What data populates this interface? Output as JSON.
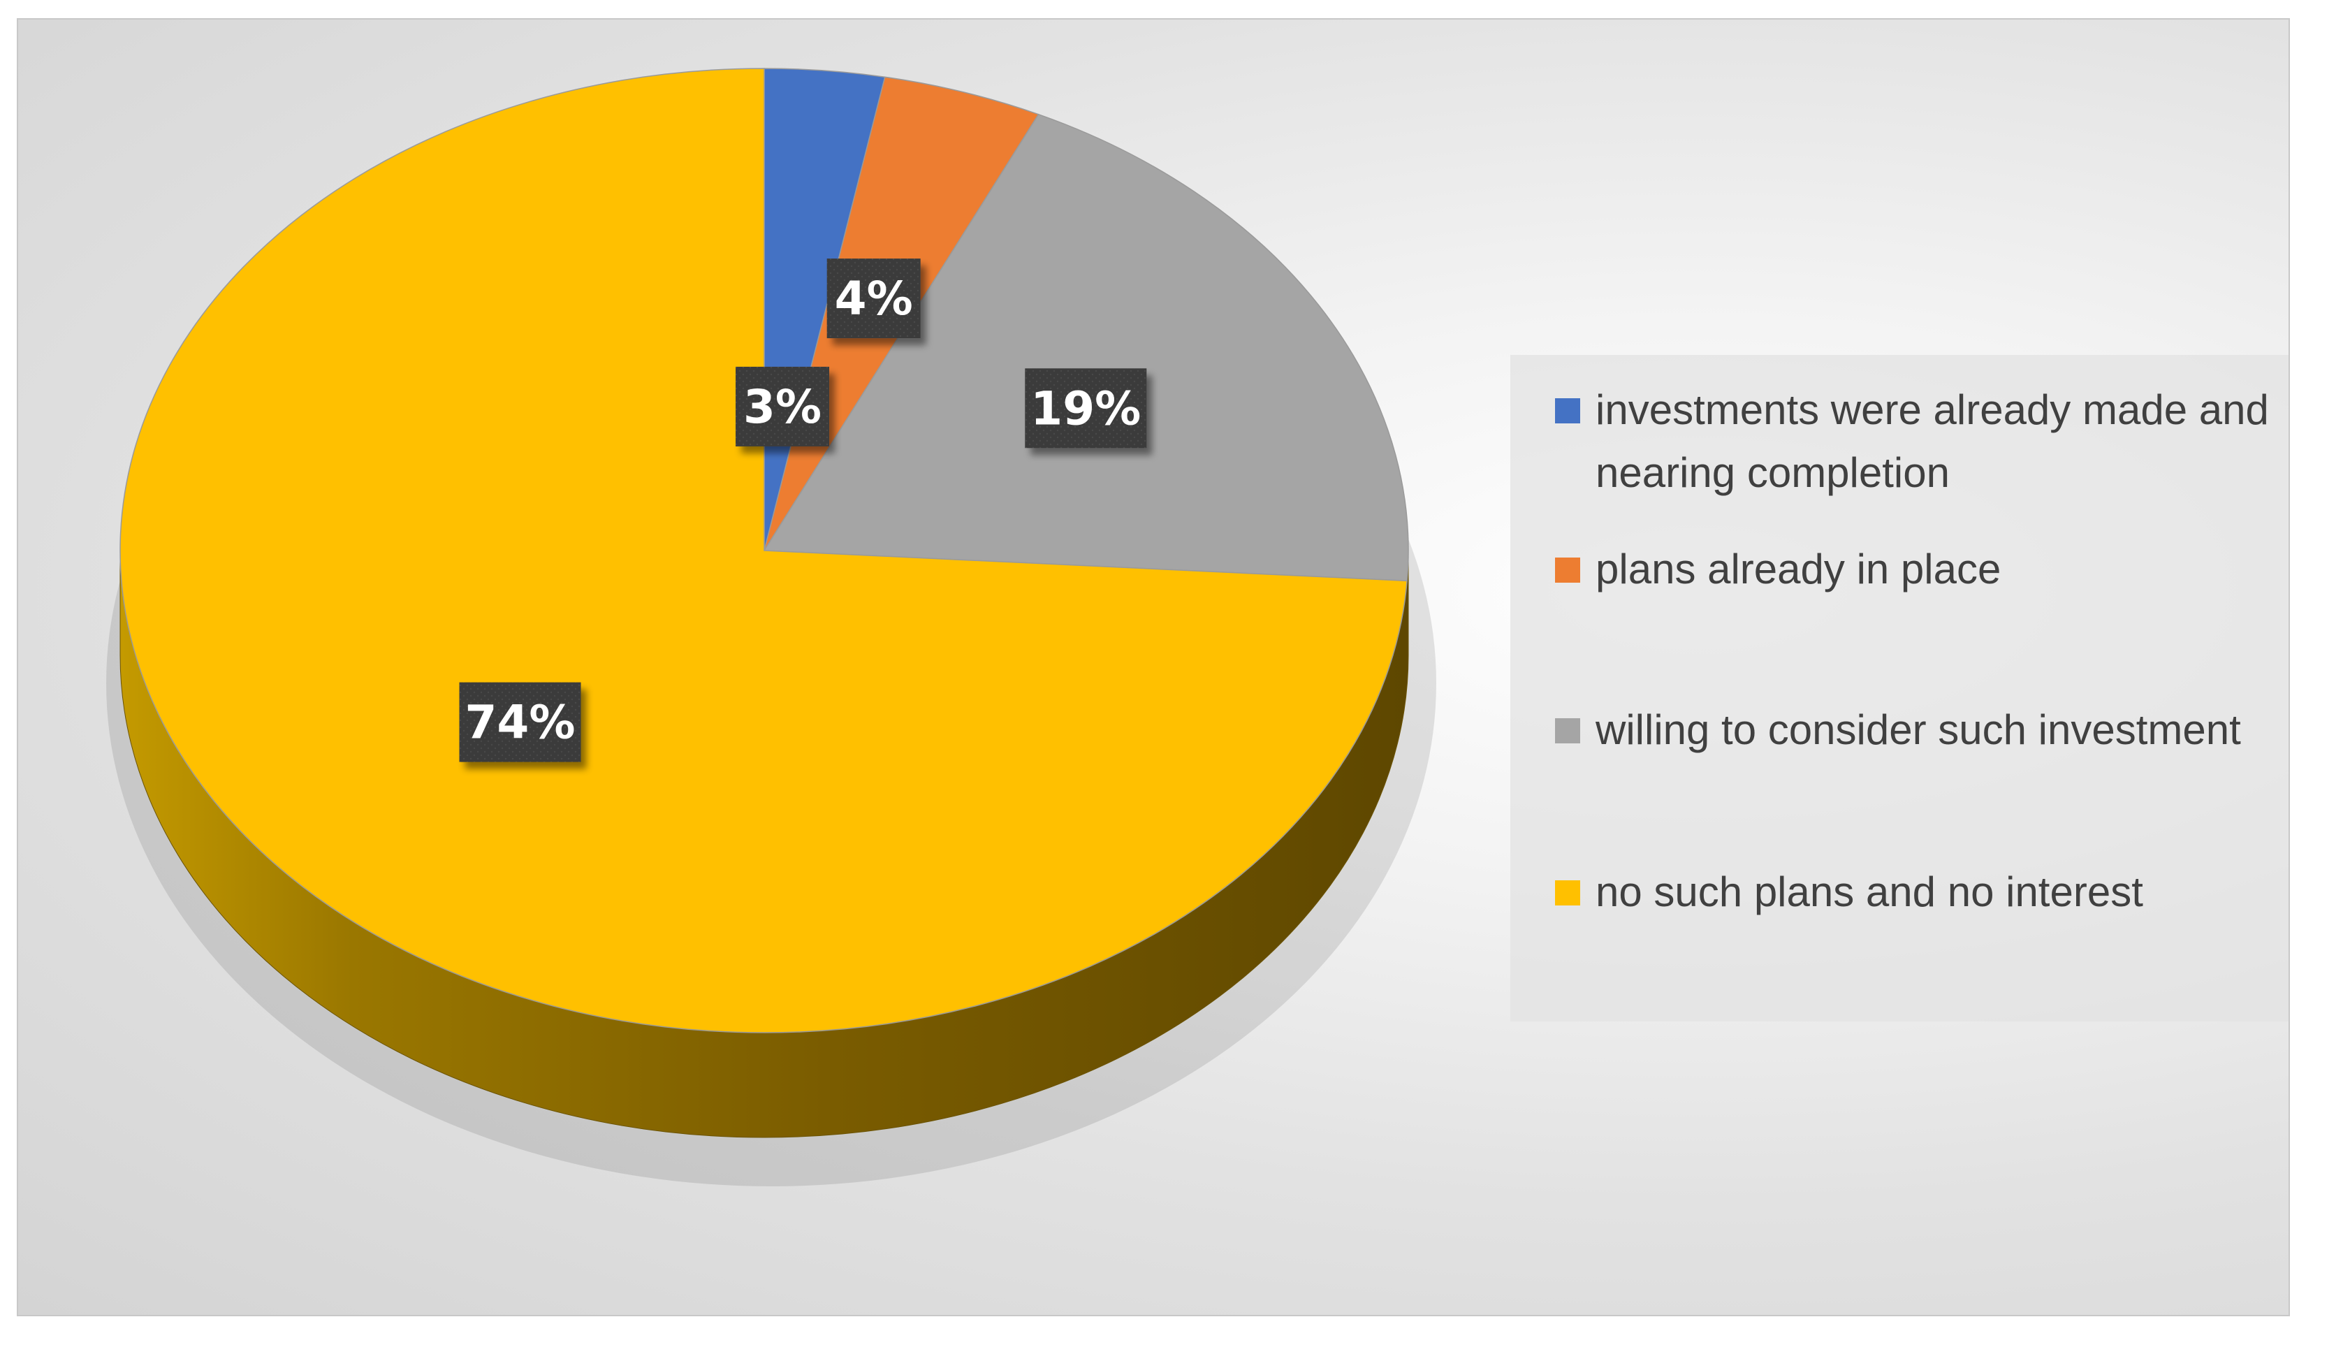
{
  "chart_data": {
    "type": "pie",
    "title": "",
    "slices": [
      {
        "label": "investments were already made and nearing completion",
        "value": 3,
        "display": "3%",
        "color": "#4472C4"
      },
      {
        "label": "plans already in place",
        "value": 4,
        "display": "4%",
        "color": "#ED7D31"
      },
      {
        "label": "willing to consider such investment",
        "value": 19,
        "display": "19%",
        "color": "#A5A5A5"
      },
      {
        "label": "no such plans and no interest",
        "value": 74,
        "display": "74%",
        "color": "#FFC000"
      }
    ],
    "legend_position": "right",
    "style": "3d-pie"
  },
  "legend": {
    "items": [
      {
        "label": "investments were already made and nearing completion",
        "color": "#4472C4"
      },
      {
        "label": "plans already in place",
        "color": "#ED7D31"
      },
      {
        "label": "willing to consider such investment",
        "color": "#A5A5A5"
      },
      {
        "label": "no such plans and no interest",
        "color": "#FFC000"
      }
    ]
  }
}
